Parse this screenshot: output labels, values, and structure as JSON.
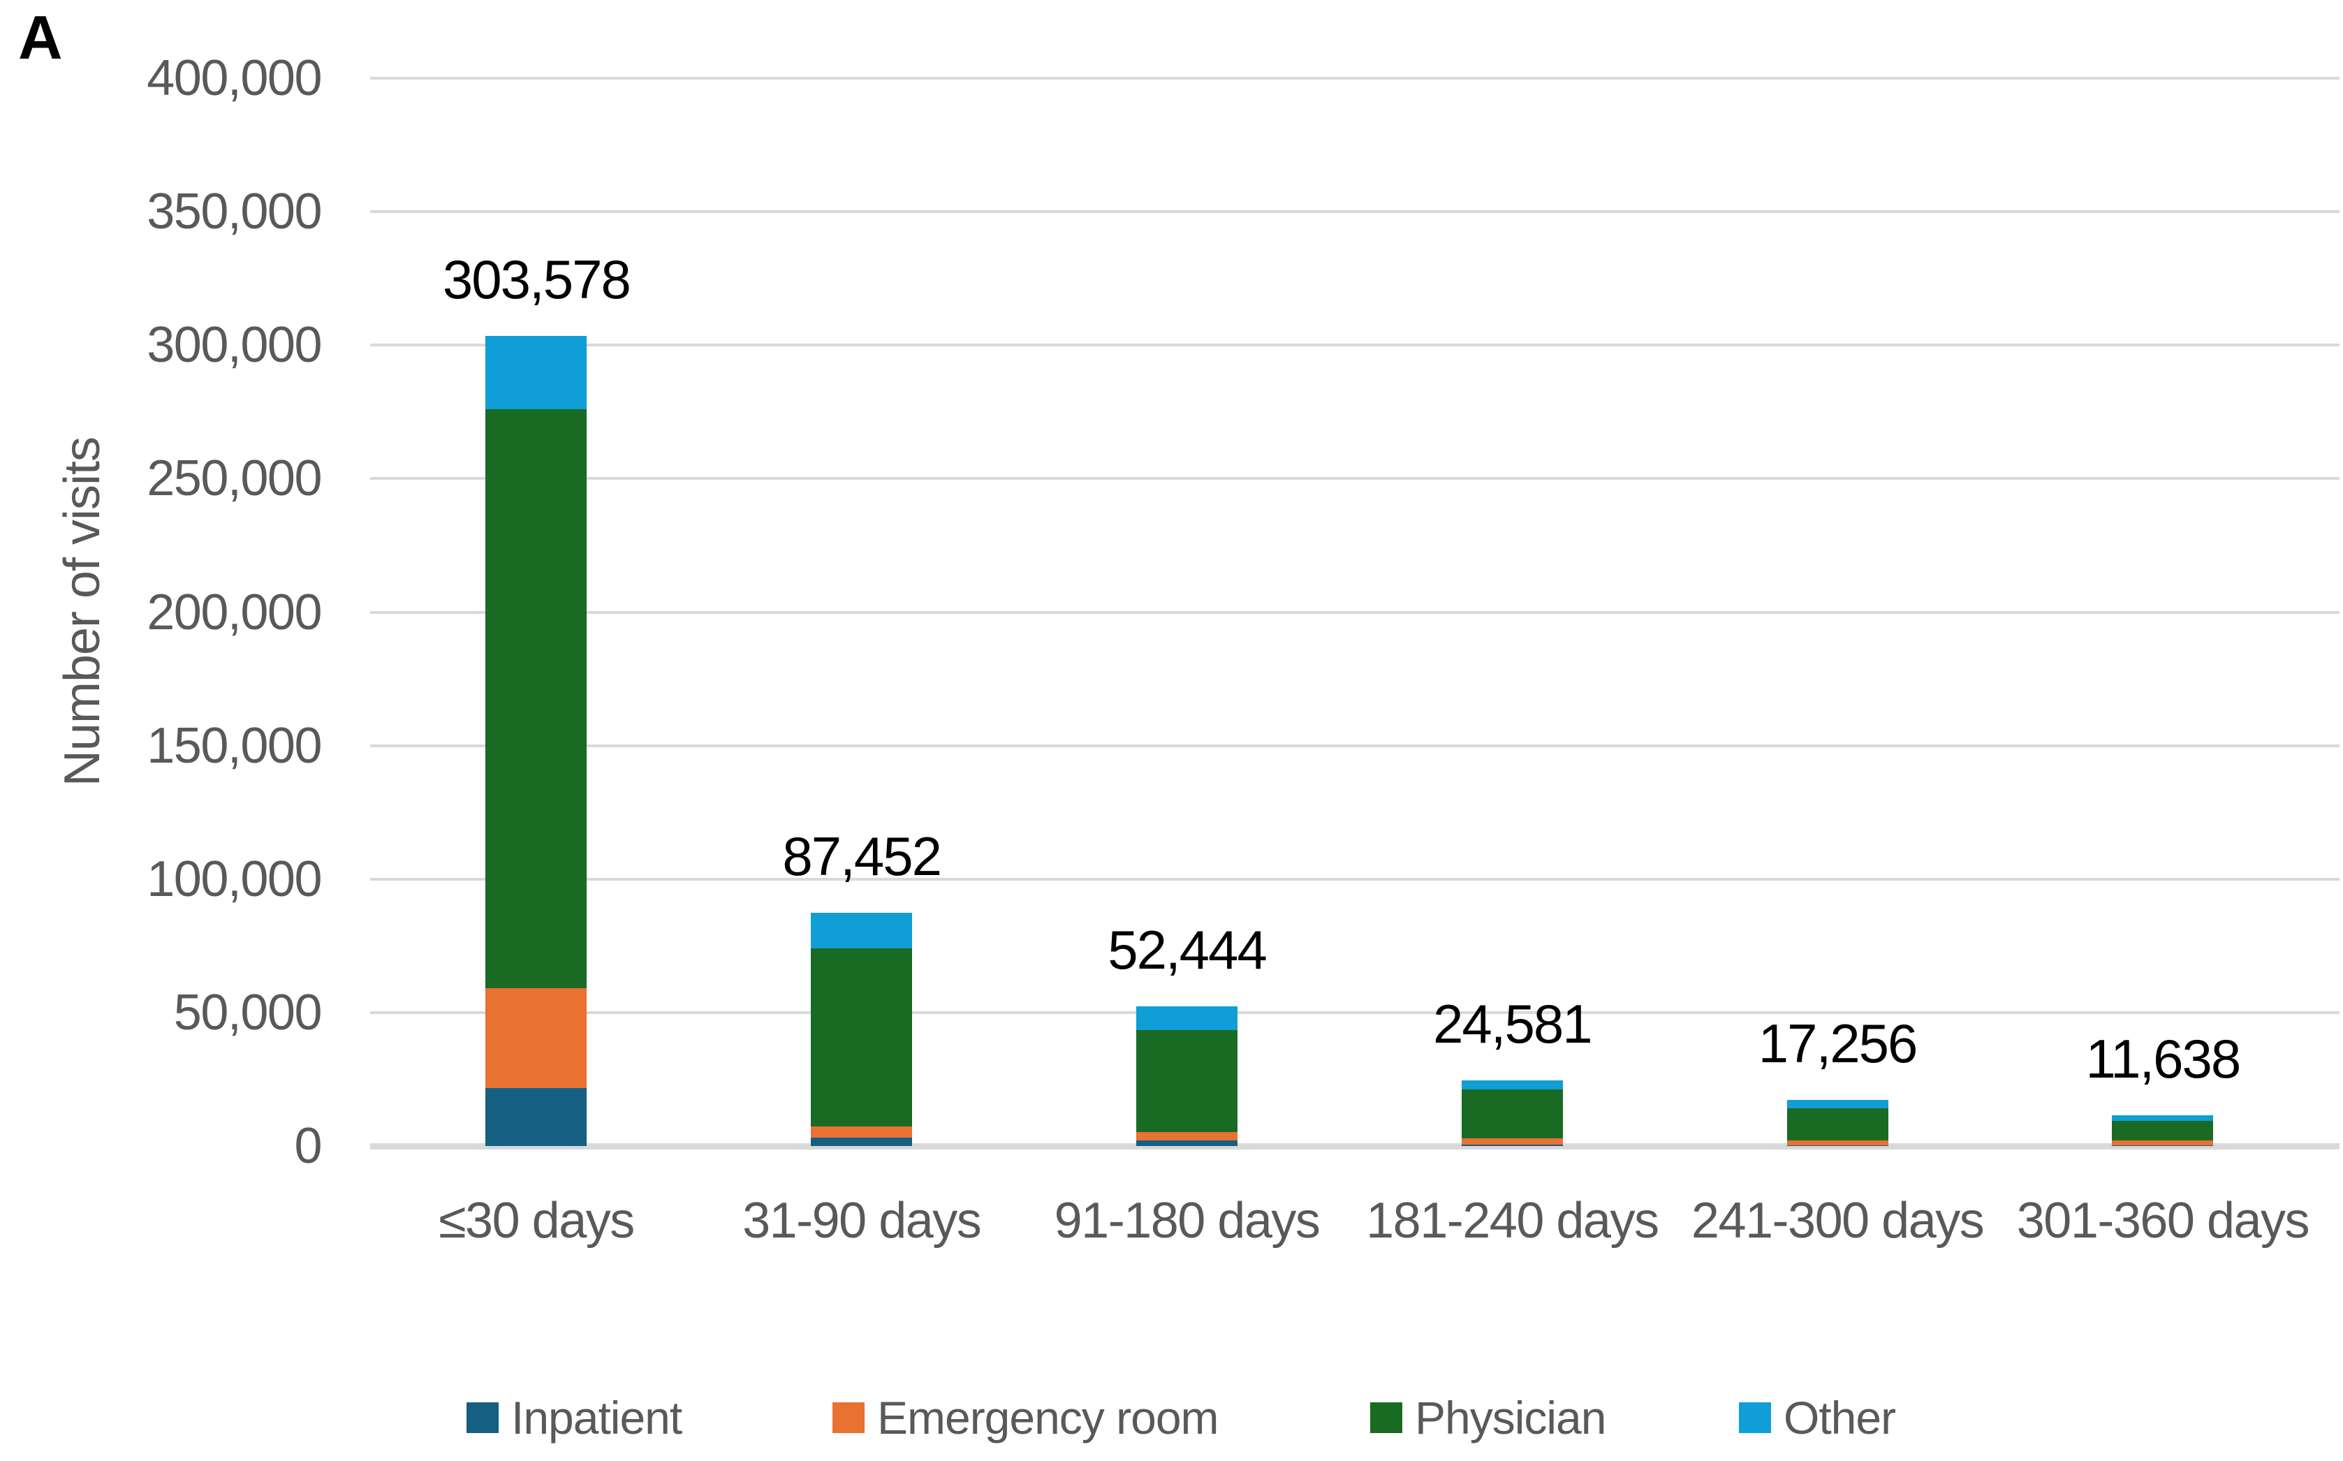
{
  "panel_label": "A",
  "chart_data": {
    "type": "bar",
    "stacked": true,
    "title": "",
    "xlabel": "",
    "ylabel": "Number of visits",
    "grid": true,
    "legend_position": "bottom",
    "categories": [
      "≤30 days",
      "31-90 days",
      "91-180 days",
      "181-240 days",
      "241-300 days",
      "301-360 days"
    ],
    "series": [
      {
        "name": "Inpatient",
        "color": "#156082",
        "values": [
          21700,
          3100,
          2100,
          400,
          300,
          200
        ]
      },
      {
        "name": "Emergency room",
        "color": "#E97132",
        "values": [
          37400,
          4200,
          3100,
          2600,
          1900,
          1900
        ]
      },
      {
        "name": "Physician",
        "color": "#196B24",
        "values": [
          216900,
          66800,
          38200,
          18200,
          12000,
          7200
        ]
      },
      {
        "name": "Other",
        "color": "#0F9ED5",
        "values": [
          27578,
          13352,
          9044,
          3381,
          3056,
          2338
        ]
      }
    ],
    "totals": [
      303578,
      87452,
      52444,
      24581,
      17256,
      11638
    ],
    "total_labels": [
      "303,578",
      "87,452",
      "52,444",
      "24,581",
      "17,256",
      "11,638"
    ],
    "y_axis": {
      "min": 0,
      "max": 400000,
      "tick_step": 50000,
      "tick_labels": [
        "0",
        "50,000",
        "100,000",
        "150,000",
        "200,000",
        "250,000",
        "300,000",
        "350,000",
        "400,000"
      ]
    },
    "colors": {
      "gridline": "#D9D9D9",
      "axis_text": "#595959",
      "data_label": "#000000"
    }
  }
}
